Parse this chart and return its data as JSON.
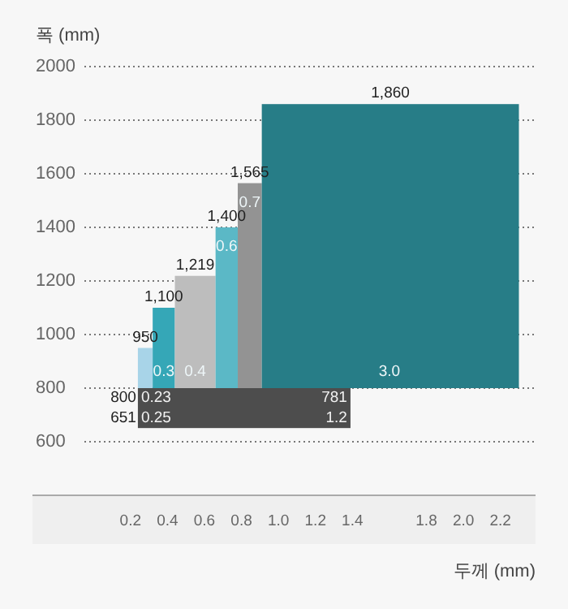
{
  "chart_data": {
    "type": "histogram",
    "xlabel": "두께 (mm)",
    "ylabel": "폭 (mm)",
    "xlim": [
      -0.33,
      2.39
    ],
    "xticks": [
      0.2,
      0.4,
      0.6,
      0.8,
      {
        "value": 1,
        "label": "1.0"
      },
      1.2,
      1.4,
      1.8,
      {
        "value": 2,
        "label": "2.0"
      },
      2.2
    ],
    "ylim": [
      400,
      2000
    ],
    "yticks": [
      600,
      800,
      1000,
      1200,
      1400,
      1600,
      1800,
      2000
    ],
    "grid": "y",
    "bins": [
      0.24,
      0.32,
      0.44,
      0.66,
      0.78,
      0.91,
      2.3
    ],
    "base": [
      800,
      800,
      800,
      800,
      800,
      800
    ],
    "values": [
      150,
      300,
      419,
      600,
      765,
      1060
    ],
    "colors": [
      "#a8d4e8",
      "#35a7b7",
      "#bdbdbd",
      "#5bb8c6",
      "#939393",
      "#277d87"
    ],
    "value_labels": [
      "950",
      "1,100",
      "1,219",
      "1,400",
      "1,565",
      "1,860"
    ],
    "bands": [
      {
        "axis": "y",
        "from": 651,
        "to": 800,
        "color": "#4d4d4d"
      }
    ],
    "annotations": [
      {
        "text": "0.3",
        "x": 0.38,
        "y": 800
      },
      {
        "text": "0.4",
        "x": 0.55,
        "y": 800
      },
      {
        "text": "0.6",
        "x": 0.72,
        "y": 1400
      },
      {
        "text": "0.7",
        "x": 0.845,
        "y": 1565
      },
      {
        "text": "3.0",
        "x": 1.6,
        "y": 800
      },
      "800",
      "0.23",
      "781",
      "651",
      "0.25",
      "1.2"
    ]
  }
}
